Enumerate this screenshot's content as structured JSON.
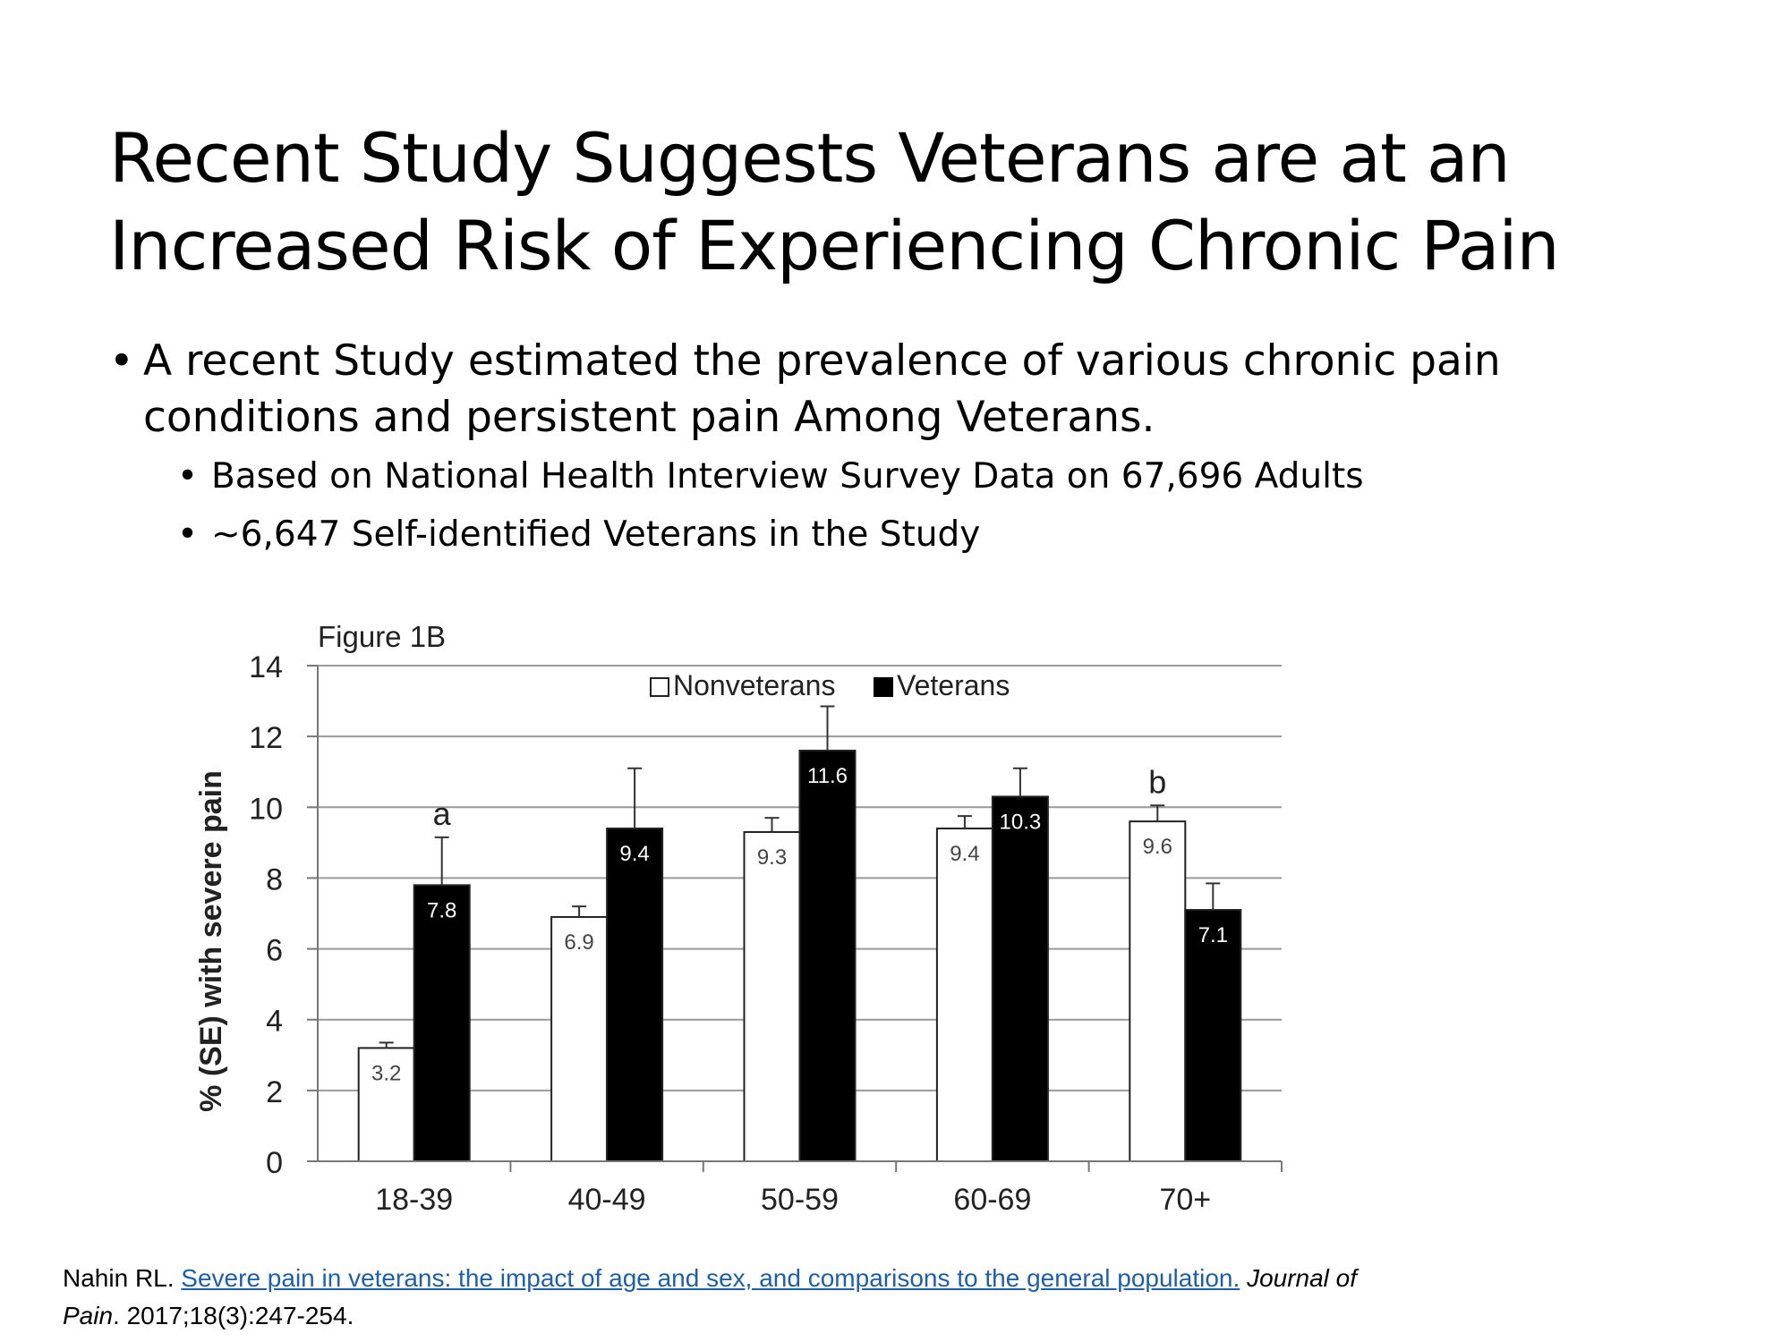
{
  "slide": {
    "title_line1": "Recent Study Suggests Veterans are at an",
    "title_line2": "Increased Risk of Experiencing Chronic Pain",
    "bullet1_line1": "A recent Study estimated the prevalence of various chronic pain",
    "bullet1_line2": "conditions and persistent pain Among Veterans.",
    "sub_bullets": [
      "Based on National Health Interview Survey Data on 67,696 Adults",
      "~6,647 Self-identified Veterans in the Study"
    ],
    "bullet_glyph": "•"
  },
  "citation": {
    "author": "Nahin RL.",
    "link_text": "Severe pain in veterans: the impact of age and sex, and comparisons to the general population.",
    "journal_part1": "Journal of",
    "journal_part2": "Pain",
    "details": ". 2017;18(3):247-254.",
    "link_color": "#1f5fa8"
  },
  "chart_data": {
    "type": "bar",
    "title": "Figure 1B",
    "ylabel": "% (SE) with severe pain",
    "xlabel": "",
    "ylim": [
      0,
      14
    ],
    "yticks": [
      0,
      2,
      4,
      6,
      8,
      10,
      12,
      14
    ],
    "categories": [
      "18-39",
      "40-49",
      "50-59",
      "60-69",
      "70+"
    ],
    "grid": true,
    "legend_position": "top-center",
    "series": [
      {
        "name": "Nonveterans",
        "color": "#ffffff",
        "values": [
          3.2,
          6.9,
          9.3,
          9.4,
          9.6
        ],
        "se": [
          0.15,
          0.3,
          0.4,
          0.35,
          0.45
        ],
        "labels": [
          "3.2",
          "6.9",
          "9.3",
          "9.4",
          "9.6"
        ]
      },
      {
        "name": "Veterans",
        "color": "#000000",
        "values": [
          7.8,
          9.4,
          11.6,
          10.3,
          7.1
        ],
        "se": [
          1.35,
          1.7,
          1.25,
          0.8,
          0.75
        ],
        "labels": [
          "7.8",
          "9.4",
          "11.6",
          "10.3",
          "7.1"
        ]
      }
    ],
    "annotations": [
      {
        "text": "a",
        "category": "18-39",
        "series": "Veterans"
      },
      {
        "text": "b",
        "category": "70+",
        "series": "Nonveterans"
      }
    ]
  }
}
